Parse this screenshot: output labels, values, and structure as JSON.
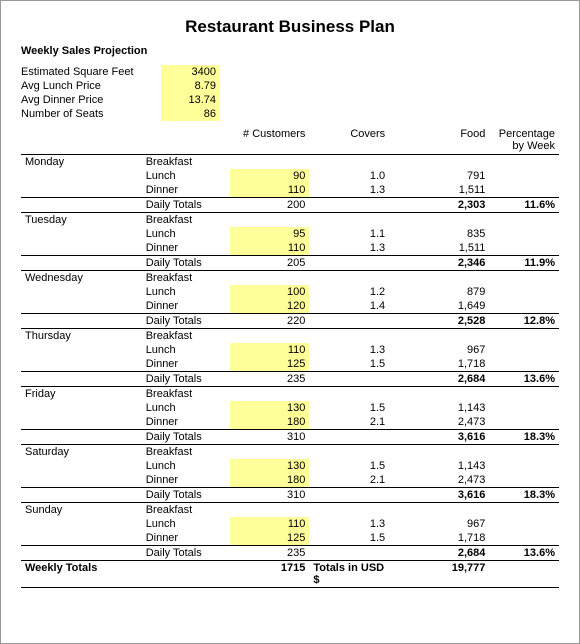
{
  "title": "Restaurant Business Plan",
  "subtitle": "Weekly Sales Projection",
  "highlight_color": "#ffff99",
  "background_color": "#ffffff",
  "border_color": "#000000",
  "estimates": {
    "sqft_label": "Estimated Square Feet",
    "sqft_val": "3400",
    "lunch_label": "Avg Lunch Price",
    "lunch_val": "8.79",
    "dinner_label": "Avg Dinner Price",
    "dinner_val": "13.74",
    "seats_label": "Number of Seats",
    "seats_val": "86"
  },
  "headers": {
    "customers": "# Customers",
    "covers": "Covers",
    "food": "Food",
    "pct": "Percentage by Week"
  },
  "meals": {
    "breakfast": "Breakfast",
    "lunch": "Lunch",
    "dinner": "Dinner",
    "daily": "Daily Totals"
  },
  "days": [
    {
      "name": "Monday",
      "lunch_cust": "90",
      "lunch_cov": "1.0",
      "lunch_food": "791",
      "dinner_cust": "110",
      "dinner_cov": "1.3",
      "dinner_food": "1,511",
      "total_cust": "200",
      "total_food": "2,303",
      "pct": "11.6%"
    },
    {
      "name": "Tuesday",
      "lunch_cust": "95",
      "lunch_cov": "1.1",
      "lunch_food": "835",
      "dinner_cust": "110",
      "dinner_cov": "1.3",
      "dinner_food": "1,511",
      "total_cust": "205",
      "total_food": "2,346",
      "pct": "11.9%"
    },
    {
      "name": "Wednesday",
      "lunch_cust": "100",
      "lunch_cov": "1.2",
      "lunch_food": "879",
      "dinner_cust": "120",
      "dinner_cov": "1.4",
      "dinner_food": "1,649",
      "total_cust": "220",
      "total_food": "2,528",
      "pct": "12.8%"
    },
    {
      "name": "Thursday",
      "lunch_cust": "110",
      "lunch_cov": "1.3",
      "lunch_food": "967",
      "dinner_cust": "125",
      "dinner_cov": "1.5",
      "dinner_food": "1,718",
      "total_cust": "235",
      "total_food": "2,684",
      "pct": "13.6%"
    },
    {
      "name": "Friday",
      "lunch_cust": "130",
      "lunch_cov": "1.5",
      "lunch_food": "1,143",
      "dinner_cust": "180",
      "dinner_cov": "2.1",
      "dinner_food": "2,473",
      "total_cust": "310",
      "total_food": "3,616",
      "pct": "18.3%"
    },
    {
      "name": "Saturday",
      "lunch_cust": "130",
      "lunch_cov": "1.5",
      "lunch_food": "1,143",
      "dinner_cust": "180",
      "dinner_cov": "2.1",
      "dinner_food": "2,473",
      "total_cust": "310",
      "total_food": "3,616",
      "pct": "18.3%"
    },
    {
      "name": "Sunday",
      "lunch_cust": "110",
      "lunch_cov": "1.3",
      "lunch_food": "967",
      "dinner_cust": "125",
      "dinner_cov": "1.5",
      "dinner_food": "1,718",
      "total_cust": "235",
      "total_food": "2,684",
      "pct": "13.6%"
    }
  ],
  "weekly": {
    "label": "Weekly Totals",
    "cust": "1715",
    "covers_label": "Totals in USD $",
    "food": "19,777"
  }
}
